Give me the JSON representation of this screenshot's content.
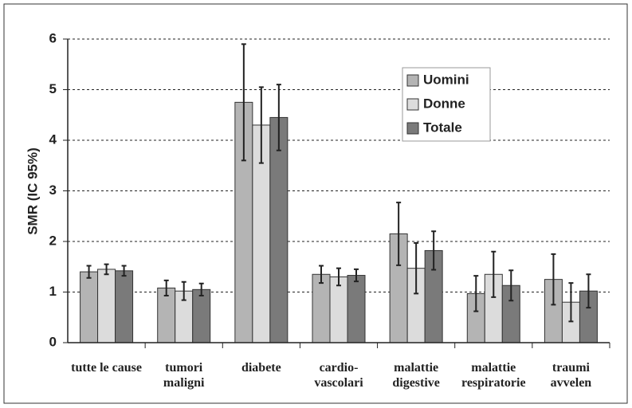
{
  "chart_data": {
    "type": "bar",
    "y_label": "SMR (IC 95%)",
    "categories": [
      "tutte le cause",
      "tumori maligni",
      "diabete",
      "cardio-vascolari",
      "malattie digestive",
      "malattie respiratorie",
      "traumi avvelen"
    ],
    "series": [
      {
        "name": "Uomini",
        "color": "#b4b4b4",
        "values": [
          1.4,
          1.08,
          4.75,
          1.35,
          2.15,
          0.97,
          1.25
        ],
        "errors": [
          0.12,
          0.15,
          1.15,
          0.17,
          0.62,
          0.35,
          0.5
        ]
      },
      {
        "name": "Donne",
        "color": "#dcdcdc",
        "values": [
          1.45,
          1.02,
          4.3,
          1.3,
          1.47,
          1.35,
          0.8
        ],
        "errors": [
          0.1,
          0.18,
          0.75,
          0.17,
          0.5,
          0.45,
          0.38
        ]
      },
      {
        "name": "Totale",
        "color": "#7a7a7a",
        "values": [
          1.42,
          1.05,
          4.45,
          1.33,
          1.82,
          1.13,
          1.02
        ],
        "errors": [
          0.1,
          0.12,
          0.65,
          0.12,
          0.38,
          0.3,
          0.33
        ]
      }
    ],
    "ylim": [
      0,
      6
    ],
    "yticks": [
      0,
      1,
      2,
      3,
      4,
      5,
      6
    ],
    "grid": true,
    "legend": "upper right"
  }
}
